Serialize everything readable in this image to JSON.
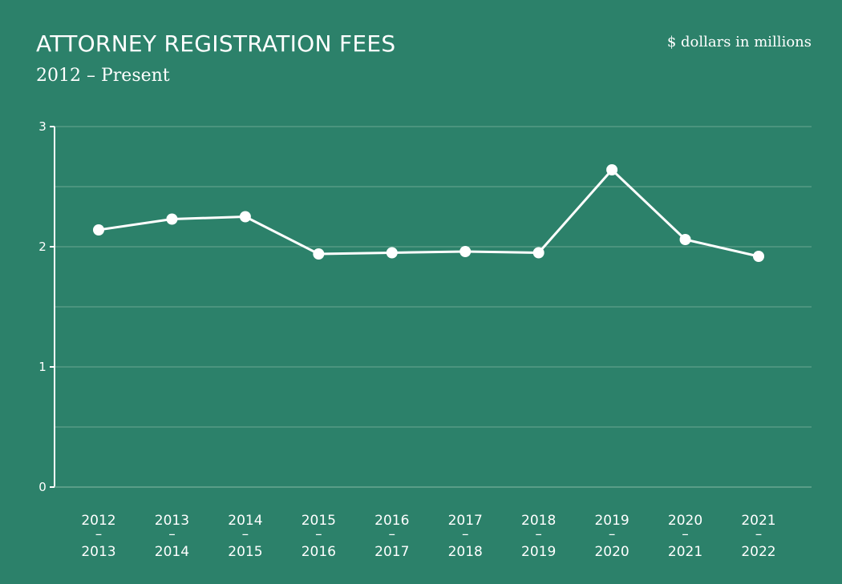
{
  "chart_data": {
    "type": "line",
    "title": "ATTORNEY REGISTRATION FEES",
    "subtitle": "2012 – Present",
    "units_note": "$ dollars in millions",
    "categories": [
      {
        "top": "2012",
        "dash": "–",
        "bottom": "2013"
      },
      {
        "top": "2013",
        "dash": "–",
        "bottom": "2014"
      },
      {
        "top": "2014",
        "dash": "–",
        "bottom": "2015"
      },
      {
        "top": "2015",
        "dash": "–",
        "bottom": "2016"
      },
      {
        "top": "2016",
        "dash": "–",
        "bottom": "2017"
      },
      {
        "top": "2017",
        "dash": "–",
        "bottom": "2018"
      },
      {
        "top": "2018",
        "dash": "–",
        "bottom": "2019"
      },
      {
        "top": "2019",
        "dash": "–",
        "bottom": "2020"
      },
      {
        "top": "2020",
        "dash": "–",
        "bottom": "2021"
      },
      {
        "top": "2021",
        "dash": "–",
        "bottom": "2022"
      }
    ],
    "values": [
      2.14,
      2.23,
      2.25,
      1.94,
      1.95,
      1.96,
      1.95,
      2.64,
      2.06,
      1.92
    ],
    "ylim": [
      0,
      3
    ],
    "yticks": [
      0,
      1,
      2,
      3
    ],
    "gridlines": [
      0.5,
      1,
      1.5,
      2,
      2.5,
      3
    ],
    "grid": true,
    "line_color": "#ffffff",
    "background_color": "#2c816a",
    "grid_color": "#6aa892"
  }
}
